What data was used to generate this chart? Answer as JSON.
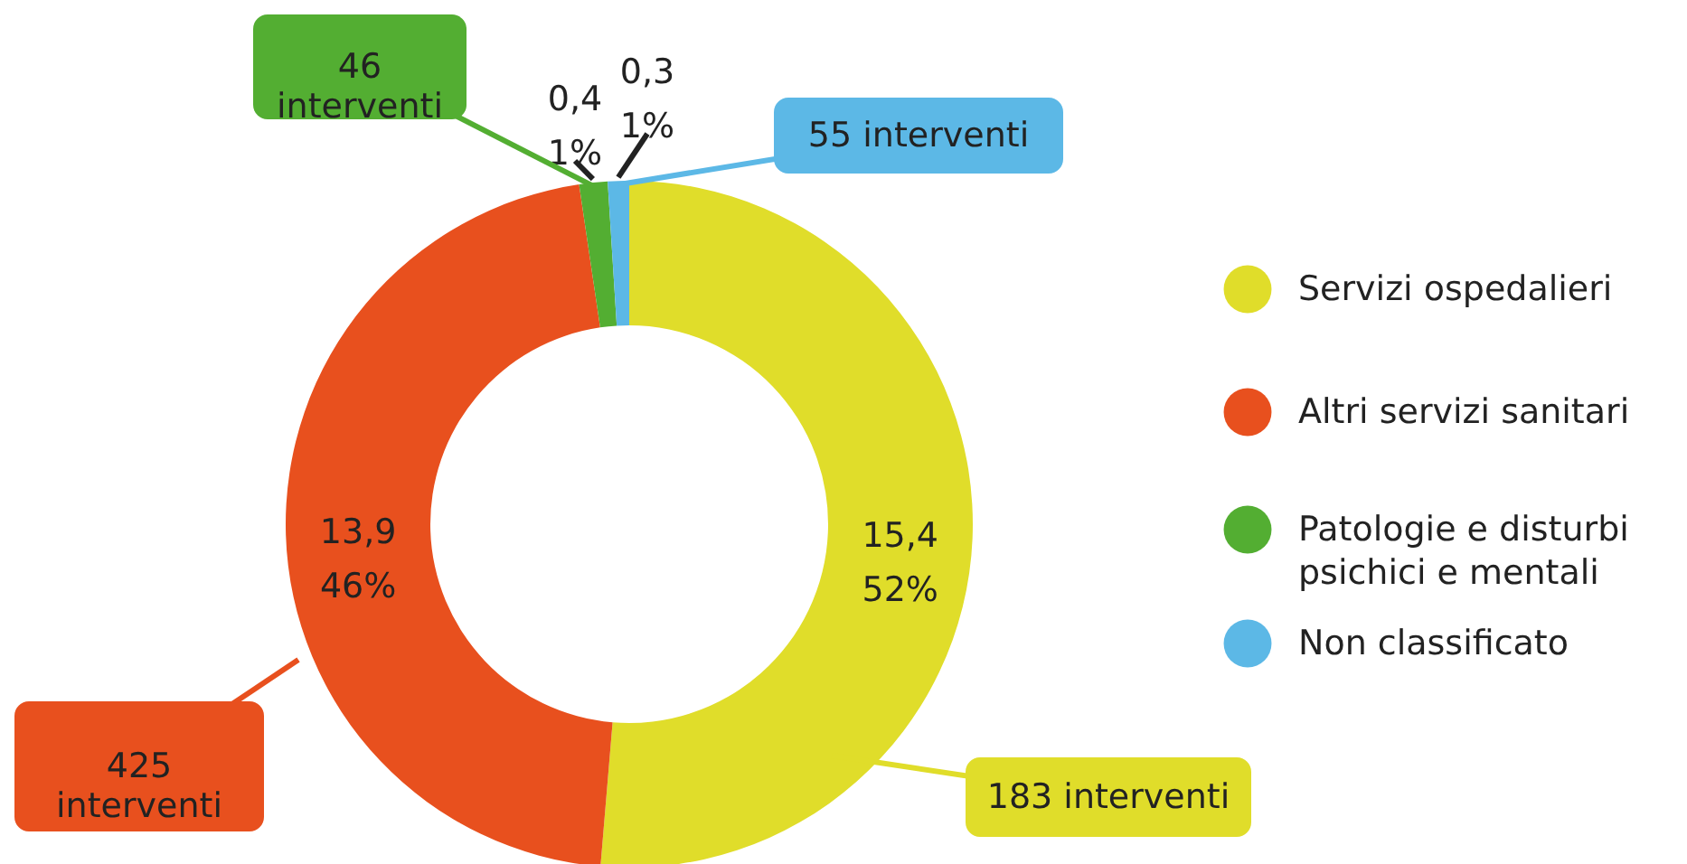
{
  "chart_data": {
    "type": "donut",
    "categories": [
      "Servizi ospedalieri",
      "Altri servizi sanitari",
      "Patologie e disturbi psichici e mentali",
      "Non classificato"
    ],
    "values": [
      15.4,
      13.9,
      0.4,
      0.3
    ],
    "colors": [
      "#e0dd2a",
      "#e8501e",
      "#53ae32",
      "#5cb8e6"
    ],
    "value_labels": [
      "15,4\n52%",
      "13,9\n46%",
      "0,4\n1%",
      "0,3\n1%"
    ],
    "annotations": [
      "183 interventi",
      "425\ninterventi",
      "46\ninterventi",
      "55 interventi"
    ],
    "legend": "right"
  }
}
